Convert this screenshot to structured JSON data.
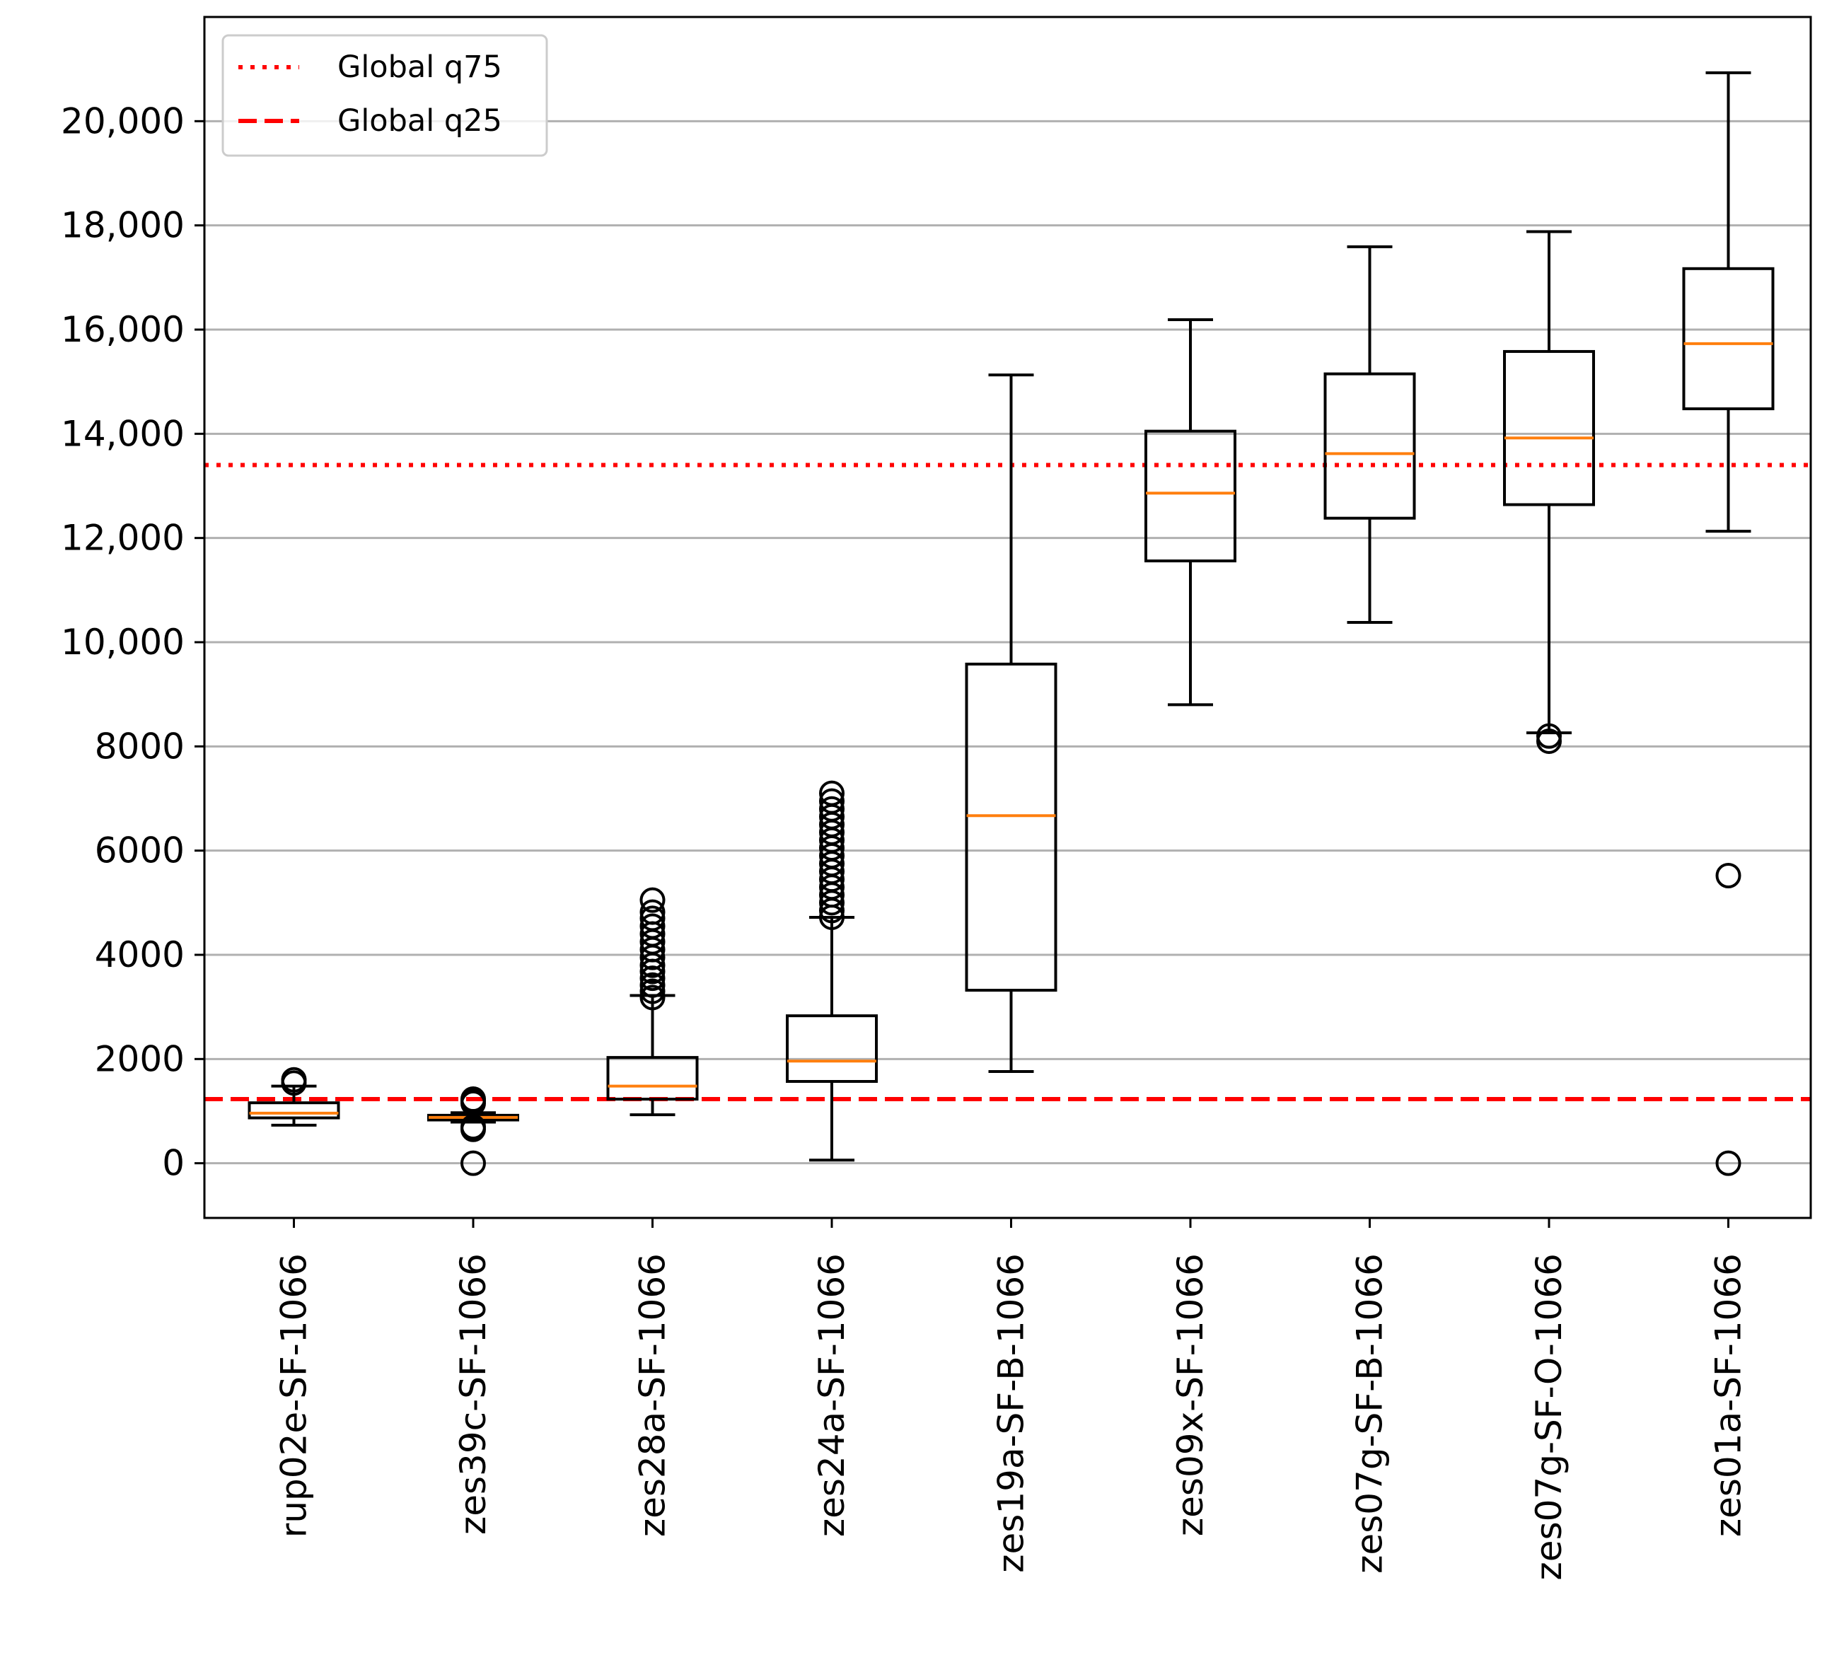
{
  "chart_data": {
    "type": "boxplot",
    "title": "",
    "xlabel": "",
    "ylabel": "",
    "ylim": [
      -1050,
      22000
    ],
    "yticks": [
      0,
      2000,
      4000,
      6000,
      8000,
      10000,
      12000,
      14000,
      16000,
      18000,
      20000
    ],
    "ytick_labels": [
      "0",
      "2000",
      "4000",
      "6000",
      "8000",
      "10,000",
      "12,000",
      "14,000",
      "16,000",
      "18,000",
      "20,000"
    ],
    "grid": "horizontal",
    "legend_position": "top-left",
    "colors": {
      "box": "#000000",
      "median": "#ff7f0e",
      "reference": "#ff0000",
      "grid": "#b0b0b0"
    },
    "reference_lines": [
      {
        "name": "Global q75",
        "value": 13400,
        "style": "dotted"
      },
      {
        "name": "Global q25",
        "value": 1230,
        "style": "dashed"
      }
    ],
    "boxes": [
      {
        "label": "rup02e-SF-1066",
        "whislo": 730,
        "q1": 870,
        "med": 960,
        "q3": 1160,
        "whishi": 1480,
        "fliers": [
          1540,
          1600
        ]
      },
      {
        "label": "zes39c-SF-1066",
        "whislo": 790,
        "q1": 830,
        "med": 880,
        "q3": 920,
        "whishi": 970,
        "fliers": [
          0,
          650,
          700,
          1150,
          1200,
          1230
        ]
      },
      {
        "label": "zes28a-SF-1066",
        "whislo": 930,
        "q1": 1230,
        "med": 1480,
        "q3": 2030,
        "whishi": 3220,
        "fliers": [
          3180,
          3300,
          3420,
          3550,
          3680,
          3800,
          3950,
          4100,
          4250,
          4400,
          4550,
          4700,
          4820,
          5050
        ]
      },
      {
        "label": "zes24a-SF-1066",
        "whislo": 60,
        "q1": 1570,
        "med": 1960,
        "q3": 2830,
        "whishi": 4720,
        "fliers": [
          4720,
          4850,
          5000,
          5150,
          5300,
          5450,
          5600,
          5750,
          5900,
          6050,
          6200,
          6350,
          6500,
          6650,
          6800,
          6950,
          7100
        ]
      },
      {
        "label": "zes19a-SF-B-1066",
        "whislo": 1760,
        "q1": 3320,
        "med": 6670,
        "q3": 9580,
        "whishi": 15130,
        "fliers": []
      },
      {
        "label": "zes09x-SF-1066",
        "whislo": 8800,
        "q1": 11560,
        "med": 12860,
        "q3": 14050,
        "whishi": 16190,
        "fliers": []
      },
      {
        "label": "zes07g-SF-B-1066",
        "whislo": 10380,
        "q1": 12380,
        "med": 13620,
        "q3": 15150,
        "whishi": 17590,
        "fliers": []
      },
      {
        "label": "zes07g-SF-O-1066",
        "whislo": 8260,
        "q1": 12640,
        "med": 13920,
        "q3": 15580,
        "whishi": 17880,
        "fliers": [
          8100,
          8200
        ]
      },
      {
        "label": "zes01a-SF-1066",
        "whislo": 12130,
        "q1": 14480,
        "med": 15730,
        "q3": 17170,
        "whishi": 20930,
        "fliers": [
          0,
          5520
        ]
      }
    ]
  }
}
